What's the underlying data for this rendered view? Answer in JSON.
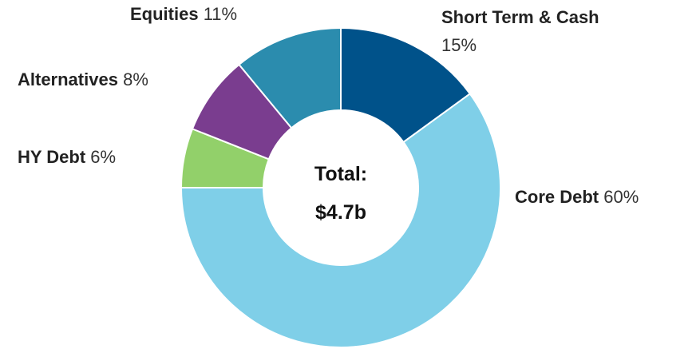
{
  "chart_data": {
    "type": "donut",
    "categories": [
      "Short Term & Cash",
      "Core Debt",
      "HY Debt",
      "Alternatives",
      "Equities"
    ],
    "values": [
      15,
      60,
      6,
      8,
      11
    ],
    "value_labels": [
      "15%",
      "60%",
      "6%",
      "8%",
      "11%"
    ],
    "colors": [
      "#00528a",
      "#7fcfe8",
      "#92d06a",
      "#7a3d8f",
      "#2b8cae"
    ],
    "center_title": "Total:",
    "center_value": "$4.7b"
  }
}
